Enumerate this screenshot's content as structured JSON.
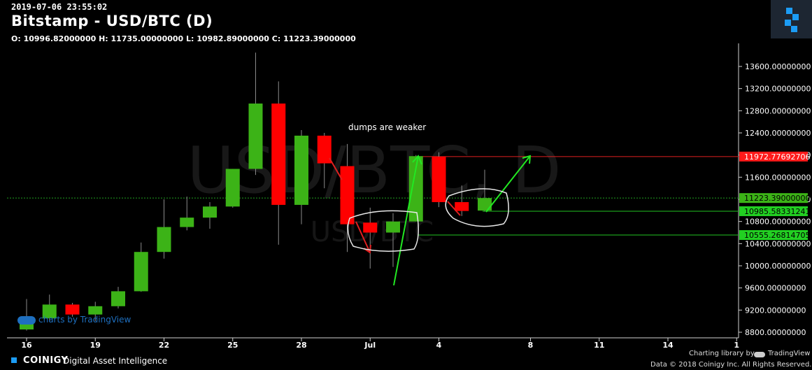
{
  "header": {
    "timestamp": "2019-07-06 23:55:02",
    "title": "Bitstamp - USD/BTC (D)",
    "ohlc": "O: 10996.82000000 H: 11735.00000000 L: 10982.89000000 C: 11223.39000000"
  },
  "watermark": {
    "big": "USD/BTC, D",
    "small": "USD/BTC"
  },
  "annotation": {
    "text": "dumps are weaker"
  },
  "tv_watermark": "charts by TradingView",
  "footer": {
    "brand": "COINIGY",
    "tagline": "Digital Asset Intelligence",
    "charting_library": "Charting library by",
    "tradingview": "TradingView",
    "copyright": "Data © 2018 Coinigy Inc. All Rights Reserved."
  },
  "colors": {
    "up": "#3cb317",
    "down": "#ff0000",
    "level_red": "#e02020",
    "level_green": "#22c322",
    "arrow_green": "#22e822",
    "tag_green": "#22d022"
  },
  "chart_data": {
    "type": "candlestick",
    "ylim": [
      8650,
      13900
    ],
    "yticks": [
      8800,
      9200,
      9600,
      10000,
      10400,
      10800,
      11200,
      11600,
      12000,
      12400,
      12800,
      13200,
      13600
    ],
    "ytick_labels": [
      "8800.00000000",
      "9200.00000000",
      "9600.00000000",
      "10000.00000000",
      "10400.00000000",
      "10800.00000000",
      "11200.00000000",
      "11600.00000000",
      "12000.00000000",
      "12400.00000000",
      "12800.00000000",
      "13200.00000000",
      "13600.00000000"
    ],
    "xticks": [
      {
        "label": "16",
        "day": 0
      },
      {
        "label": "19",
        "day": 3
      },
      {
        "label": "22",
        "day": 6
      },
      {
        "label": "25",
        "day": 9
      },
      {
        "label": "28",
        "day": 12
      },
      {
        "label": "Jul",
        "day": 15
      },
      {
        "label": "4",
        "day": 18
      },
      {
        "label": "8",
        "day": 22
      },
      {
        "label": "11",
        "day": 25
      },
      {
        "label": "14",
        "day": 28
      },
      {
        "label": "1",
        "day": 31
      }
    ],
    "candles": [
      {
        "day": 0,
        "o": 8850,
        "h": 9400,
        "l": 8830,
        "c": 9050
      },
      {
        "day": 1,
        "o": 9050,
        "h": 9480,
        "l": 8990,
        "c": 9300
      },
      {
        "day": 2,
        "o": 9300,
        "h": 9330,
        "l": 9080,
        "c": 9120
      },
      {
        "day": 3,
        "o": 9120,
        "h": 9350,
        "l": 9000,
        "c": 9270
      },
      {
        "day": 4,
        "o": 9270,
        "h": 9620,
        "l": 9230,
        "c": 9540
      },
      {
        "day": 5,
        "o": 9540,
        "h": 10420,
        "l": 9530,
        "c": 10250
      },
      {
        "day": 6,
        "o": 10250,
        "h": 11200,
        "l": 10130,
        "c": 10700
      },
      {
        "day": 7,
        "o": 10700,
        "h": 11250,
        "l": 10640,
        "c": 10870
      },
      {
        "day": 8,
        "o": 10870,
        "h": 11150,
        "l": 10670,
        "c": 11070
      },
      {
        "day": 9,
        "o": 11070,
        "h": 11750,
        "l": 11050,
        "c": 11750
      },
      {
        "day": 10,
        "o": 11750,
        "h": 13850,
        "l": 11640,
        "c": 12930
      },
      {
        "day": 11,
        "o": 12930,
        "h": 13330,
        "l": 10380,
        "c": 11100
      },
      {
        "day": 12,
        "o": 11100,
        "h": 12450,
        "l": 10750,
        "c": 12350
      },
      {
        "day": 13,
        "o": 12350,
        "h": 12400,
        "l": 11400,
        "c": 11850
      },
      {
        "day": 14,
        "o": 11800,
        "h": 12200,
        "l": 10250,
        "c": 10750
      },
      {
        "day": 15,
        "o": 10780,
        "h": 11050,
        "l": 9950,
        "c": 10600
      },
      {
        "day": 16,
        "o": 10600,
        "h": 10950,
        "l": 9980,
        "c": 10800
      },
      {
        "day": 17,
        "o": 10800,
        "h": 12000,
        "l": 10800,
        "c": 11980
      },
      {
        "day": 18,
        "o": 11970,
        "h": 12050,
        "l": 11060,
        "c": 11150
      },
      {
        "day": 19,
        "o": 11150,
        "h": 11450,
        "l": 10900,
        "c": 10990
      },
      {
        "day": 20,
        "o": 10997,
        "h": 11735,
        "l": 10983,
        "c": 11223
      }
    ],
    "levels": [
      {
        "value": 11972.77692706,
        "label": "11972.77692706",
        "color": "red"
      },
      {
        "value": 11223.39,
        "label": "11223.39000000",
        "color": "green"
      },
      {
        "value": 10985.58331241,
        "label": "10985.58331241",
        "color": "green"
      },
      {
        "value": 10555.26814705,
        "label": "10555.26814705",
        "color": "green"
      }
    ]
  }
}
